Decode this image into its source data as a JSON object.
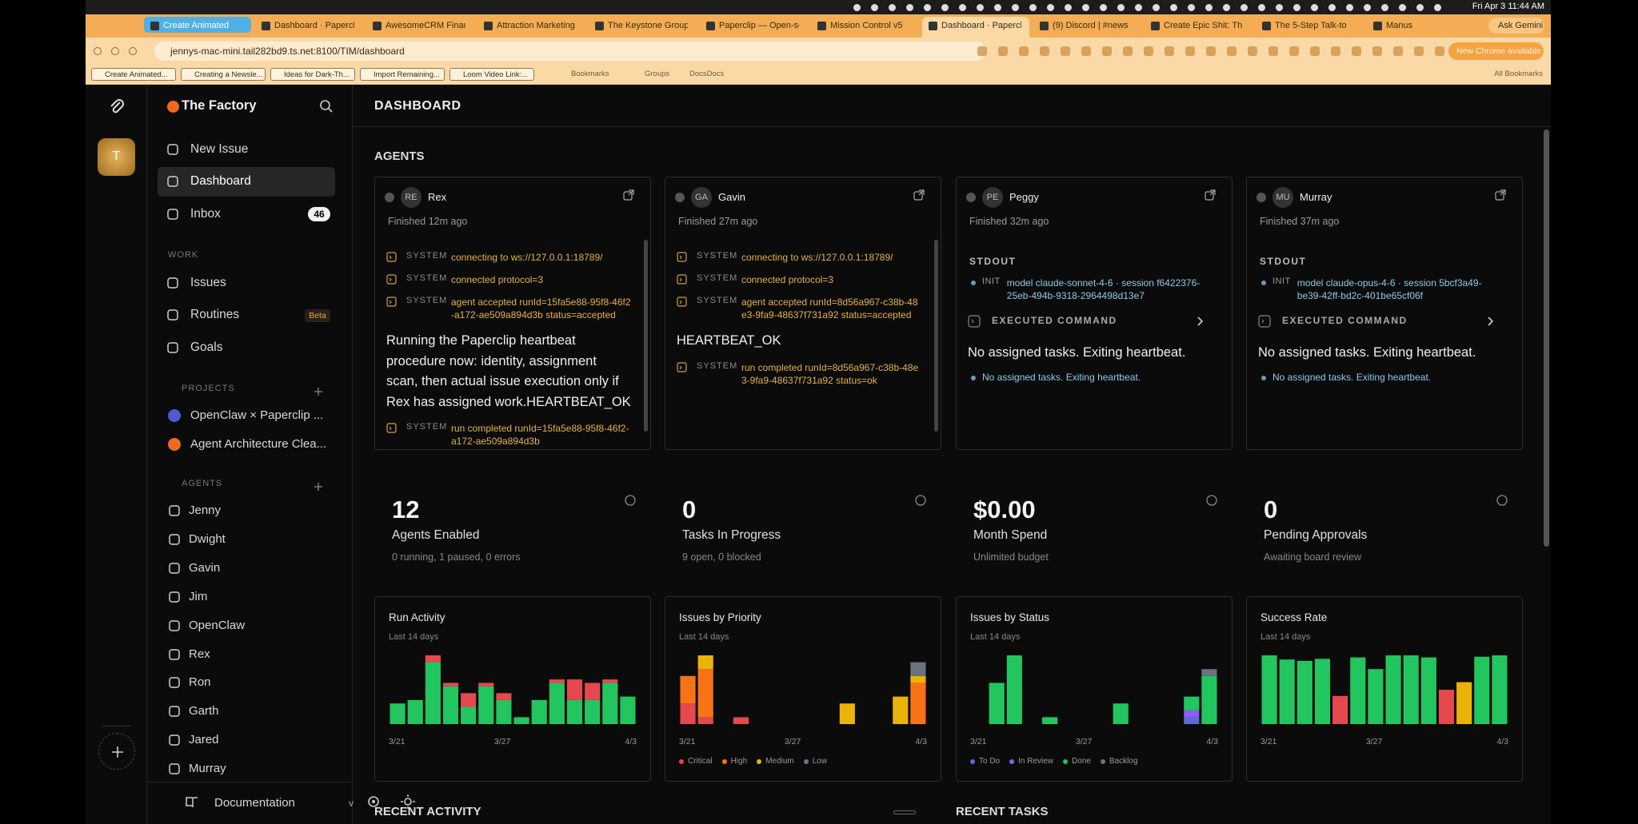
{
  "system_bar": {
    "time": "Fri Apr 3  11:44 AM"
  },
  "browser": {
    "tabs": [
      "Create Animated",
      "Dashboard · Papercli",
      "AwesomeCRM Finar",
      "Attraction Marketing",
      "The Keystone Group",
      "Paperclip — Open-so",
      "Mission Control v5",
      "Dashboard · Paperclip",
      "(9) Discord | #news",
      "Create Epic Shit: Th",
      "The 5-Step Talk-to",
      "Manus"
    ],
    "ask_gemini": "Ask Gemini",
    "url": "jennys-mac-mini.tail282bd9.ts.net:8100/TIM/dashboard",
    "update": "New Chrome available",
    "bookmarks": [
      "Create Animated...",
      "Creating a Newsle...",
      "Ideas for Dark-Th...",
      "Import Remaining...",
      "Loom Video Link:..."
    ],
    "bookmark_links": [
      "Bookmarks",
      "Groups",
      "DocsDocs"
    ],
    "all_bookmarks": "All Bookmarks"
  },
  "sidebar": {
    "avatar": "T",
    "company": "The Factory",
    "new_issue": "New Issue",
    "nav": [
      {
        "label": "Dashboard"
      },
      {
        "label": "Inbox",
        "badge": 46
      }
    ],
    "work_heading": "WORK",
    "work": [
      {
        "label": "Issues"
      },
      {
        "label": "Routines",
        "badge": "Beta"
      },
      {
        "label": "Goals"
      }
    ],
    "projects_heading": "PROJECTS",
    "projects": [
      {
        "label": "OpenClaw × Paperclip ...",
        "color": "#4f5bd5"
      },
      {
        "label": "Agent Architecture Clea...",
        "color": "#f06a1d"
      }
    ],
    "agents_heading": "AGENTS",
    "agents": [
      "Jenny",
      "Dwight",
      "Gavin",
      "Jim",
      "OpenClaw",
      "Rex",
      "Ron",
      "Garth",
      "Jared",
      "Murray"
    ],
    "documentation": "Documentation",
    "docs_chevron": "v"
  },
  "main": {
    "title": "DASHBOARD",
    "agents_heading": "AGENTS",
    "agent_cards": [
      {
        "initials": "RE",
        "name": "Rex",
        "status": "Finished 12m ago",
        "logs": [
          {
            "kind": "SYSTEM",
            "text": "connecting to ws://127.0.0.1:18789/"
          },
          {
            "kind": "SYSTEM",
            "text": "connected protocol=3"
          },
          {
            "kind": "SYSTEM",
            "text": "agent accepted runId=15fa5e88-95f8-46f2-a172-ae509a894d3b status=accepted"
          },
          {
            "text": "Running the Paperclip heartbeat procedure now: identity, assignment scan, then actual issue execution only if Rex has assigned work.HEARTBEAT_OK"
          },
          {
            "kind": "SYSTEM",
            "text": "run completed runId=15fa5e88-95f8-46f2-a172-ae509a894d3b"
          }
        ]
      },
      {
        "initials": "GA",
        "name": "Gavin",
        "status": "Finished 27m ago",
        "logs": [
          {
            "kind": "SYSTEM",
            "text": "connecting to ws://127.0.0.1:18789/"
          },
          {
            "kind": "SYSTEM",
            "text": "connected protocol=3"
          },
          {
            "kind": "SYSTEM",
            "text": "agent accepted runId=8d56a967-c38b-48e3-9fa9-48637f731a92 status=accepted"
          },
          {
            "text": "HEARTBEAT_OK"
          },
          {
            "kind": "SYSTEM",
            "text": "run completed runId=8d56a967-c38b-48e3-9fa9-48637f731a92 status=ok"
          }
        ]
      },
      {
        "initials": "PE",
        "name": "Peggy",
        "status": "Finished 32m ago",
        "stdout": "STDOUT",
        "init_label": "INIT",
        "init": "model claude-sonnet-4-6 · session f6422376-25eb-494b-9318-2964498d13e7",
        "command": "EXECUTED COMMAND",
        "result": "No assigned tasks. Exiting heartbeat.",
        "note": "No assigned tasks. Exiting heartbeat."
      },
      {
        "initials": "MU",
        "name": "Murray",
        "status": "Finished 37m ago",
        "stdout": "STDOUT",
        "init_label": "INIT",
        "init": "model claude-opus-4-6 · session 5bcf3a49-be39-42ff-bd2c-401be65cf06f",
        "command": "EXECUTED COMMAND",
        "result": "No assigned tasks. Exiting heartbeat.",
        "note": "No assigned tasks. Exiting heartbeat."
      }
    ],
    "stats": [
      {
        "value": 12,
        "label": "Agents Enabled",
        "detail": "0 running, 1 paused, 0 errors"
      },
      {
        "value": 0,
        "label": "Tasks In Progress",
        "detail": "9 open, 0 blocked"
      },
      {
        "value": "$0.00",
        "label": "Month Spend",
        "detail": "Unlimited budget"
      },
      {
        "value": 0,
        "label": "Pending Approvals",
        "detail": "Awaiting board review"
      }
    ],
    "charts": [
      {
        "type": "bar",
        "title": "Run Activity",
        "subtitle": "Last 14 days",
        "x_labels": [
          "3/21",
          "3/27",
          "4/3"
        ],
        "series": [
          {
            "color": "#22c55e",
            "values": [
              6,
              7,
              18,
              11,
              5,
              11,
              7,
              2,
              7,
              12,
              7,
              7,
              12,
              8
            ]
          },
          {
            "color": "#e5484d",
            "values": [
              0,
              0,
              2,
              1,
              4,
              1,
              2,
              0,
              0,
              1,
              6,
              5,
              1,
              0
            ]
          }
        ]
      },
      {
        "type": "bar",
        "title": "Issues by Priority",
        "subtitle": "Last 14 days",
        "x_labels": [
          "3/21",
          "3/27",
          "4/3"
        ],
        "series": [
          {
            "name": "Critical",
            "color": "#e5484d",
            "values": [
              3,
              1,
              0,
              1,
              0,
              0,
              0,
              0,
              0,
              0,
              0,
              0,
              0,
              0
            ]
          },
          {
            "name": "High",
            "color": "#f97316",
            "values": [
              4,
              7,
              0,
              0,
              0,
              0,
              0,
              0,
              0,
              0,
              0,
              0,
              0,
              6
            ]
          },
          {
            "name": "Medium",
            "color": "#eab308",
            "values": [
              0,
              2,
              0,
              0,
              0,
              0,
              0,
              0,
              0,
              3,
              0,
              0,
              4,
              1
            ]
          },
          {
            "name": "Low",
            "color": "#6b7280",
            "values": [
              0,
              0,
              0,
              0,
              0,
              0,
              0,
              0,
              0,
              0,
              0,
              0,
              0,
              2
            ]
          }
        ]
      },
      {
        "type": "bar",
        "title": "Issues by Status",
        "subtitle": "Last 14 days",
        "x_labels": [
          "3/21",
          "3/27",
          "4/3"
        ],
        "series": [
          {
            "name": "To Do",
            "color": "#5b6bd6",
            "values": [
              0,
              0,
              0,
              0,
              0,
              0,
              0,
              0,
              0,
              0,
              0,
              0,
              1,
              0
            ]
          },
          {
            "name": "In Review",
            "color": "#8b5cf6",
            "values": [
              0,
              0,
              0,
              0,
              0,
              0,
              0,
              0,
              0,
              0,
              0,
              0,
              1,
              0
            ]
          },
          {
            "name": "Done",
            "color": "#22c55e",
            "values": [
              0,
              6,
              10,
              0,
              1,
              0,
              0,
              0,
              3,
              0,
              0,
              0,
              2,
              7
            ]
          },
          {
            "name": "Backlog",
            "color": "#6b7280",
            "values": [
              0,
              0,
              0,
              0,
              0,
              0,
              0,
              0,
              0,
              0,
              0,
              0,
              0,
              1
            ]
          }
        ]
      },
      {
        "type": "bar",
        "title": "Success Rate",
        "subtitle": "Last 14 days",
        "x_labels": [
          "3/21",
          "3/27",
          "4/3"
        ],
        "ylim": [
          0,
          100
        ],
        "series": [
          {
            "values": [
              100,
              94,
              92,
              95,
              41,
              97,
              80,
              100,
              100,
              97,
              50,
              61,
              98,
              100
            ],
            "colors": [
              "#22c55e",
              "#22c55e",
              "#22c55e",
              "#22c55e",
              "#e5484d",
              "#22c55e",
              "#22c55e",
              "#22c55e",
              "#22c55e",
              "#22c55e",
              "#e5484d",
              "#eab308",
              "#22c55e",
              "#22c55e"
            ]
          }
        ]
      }
    ],
    "recent_activity": "RECENT ACTIVITY",
    "recent_tasks": "RECENT TASKS"
  }
}
